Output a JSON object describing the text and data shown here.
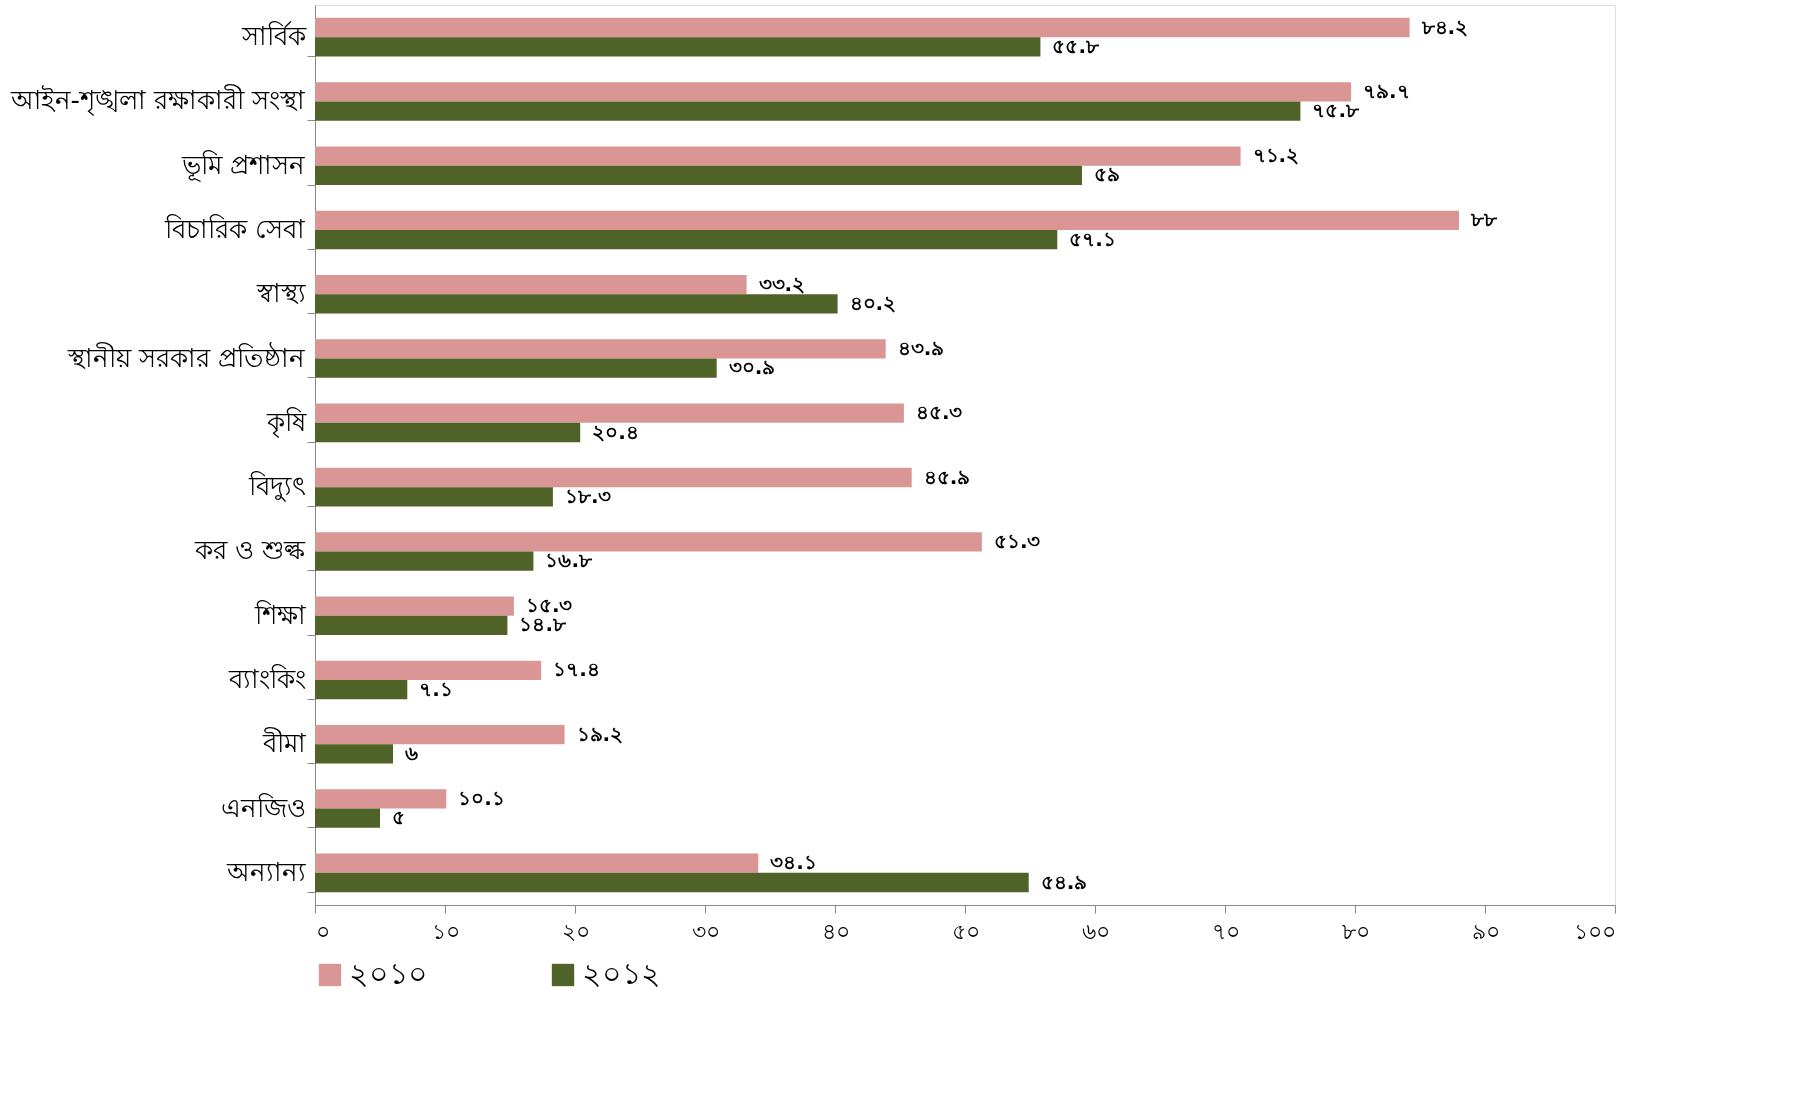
{
  "chart_data": {
    "type": "bar",
    "orientation": "horizontal",
    "categories": [
      "সার্বিক",
      "আইন-শৃঙ্খলা রক্ষাকারী সংস্থা",
      "ভূমি প্রশাসন",
      "বিচারিক সেবা",
      "স্বাস্থ্য",
      "স্থানীয় সরকার প্রতিষ্ঠান",
      "কৃষি",
      "বিদ্যুৎ",
      "কর ও শুল্ক",
      "শিক্ষা",
      "ব্যাংকিং",
      "বীমা",
      "এনজিও",
      "অন্যান্য"
    ],
    "series": [
      {
        "name": "২০১০",
        "color": "#d99694",
        "values": [
          84.2,
          79.7,
          71.2,
          88,
          33.2,
          43.9,
          45.3,
          45.9,
          51.3,
          15.3,
          17.4,
          19.2,
          10.1,
          34.1
        ],
        "value_labels": [
          "৮৪.২",
          "৭৯.৭",
          "৭১.২",
          "৮৮",
          "৩৩.২",
          "৪৩.৯",
          "৪৫.৩",
          "৪৫.৯",
          "৫১.৩",
          "১৫.৩",
          "১৭.৪",
          "১৯.২",
          "১০.১",
          "৩৪.১"
        ]
      },
      {
        "name": "২০১২",
        "color": "#4f6228",
        "values": [
          55.8,
          75.8,
          59,
          57.1,
          40.2,
          30.9,
          20.4,
          18.3,
          16.8,
          14.8,
          7.1,
          6,
          5,
          54.9
        ],
        "value_labels": [
          "৫৫.৮",
          "৭৫.৮",
          "৫৯",
          "৫৭.১",
          "৪০.২",
          "৩০.৯",
          "২০.৪",
          "১৮.৩",
          "১৬.৮",
          "১৪.৮",
          "৭.১",
          "৬",
          "৫",
          "৫৪.৯"
        ]
      }
    ],
    "xlim": [
      0,
      100
    ],
    "xticks": [
      {
        "value": 0,
        "label": "০"
      },
      {
        "value": 10,
        "label": "১০"
      },
      {
        "value": 20,
        "label": "২০"
      },
      {
        "value": 30,
        "label": "৩০"
      },
      {
        "value": 40,
        "label": "৪০"
      },
      {
        "value": 50,
        "label": "৫০"
      },
      {
        "value": 60,
        "label": "৬০"
      },
      {
        "value": 70,
        "label": "৭০"
      },
      {
        "value": 80,
        "label": "৮০"
      },
      {
        "value": 90,
        "label": "৯০"
      },
      {
        "value": 100,
        "label": "১০০"
      }
    ],
    "grid": false,
    "legend": "bottom"
  }
}
